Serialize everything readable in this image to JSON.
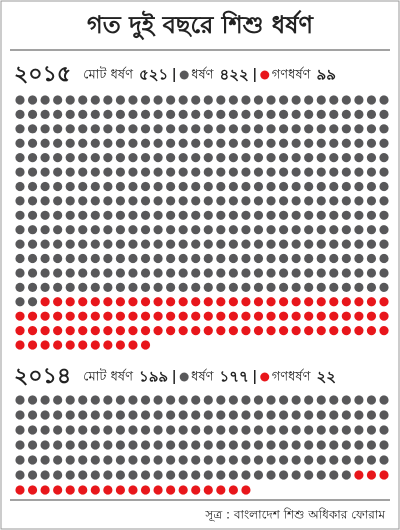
{
  "title": "গত দুই বছরে শিশু ধর্ষণ",
  "source": "সূত্র : বাংলাদেশ শিশু অধিকার ফোরাম",
  "chart_data": [
    {
      "type": "waffle",
      "title": "২০১৫",
      "total_name": "মোট ধর্ষণ",
      "total": {
        "value": 521,
        "label": "৫২১"
      },
      "series": [
        {
          "name": "ধর্ষণ",
          "color": "#58585a",
          "values": [
            422
          ],
          "value_labels": [
            "৪২২"
          ]
        },
        {
          "name": "গণধর্ষণ",
          "color": "#e8161b",
          "values": [
            99
          ],
          "value_labels": [
            "৯৯"
          ]
        }
      ]
    },
    {
      "type": "waffle",
      "title": "২০১৪",
      "total_name": "মোট ধর্ষণ",
      "total": {
        "value": 199,
        "label": "১৯৯"
      },
      "series": [
        {
          "name": "ধর্ষণ",
          "color": "#58585a",
          "values": [
            177
          ],
          "value_labels": [
            "১৭৭"
          ]
        },
        {
          "name": "গণধর্ষণ",
          "color": "#e8161b",
          "values": [
            22
          ],
          "value_labels": [
            "২২"
          ]
        }
      ]
    }
  ]
}
